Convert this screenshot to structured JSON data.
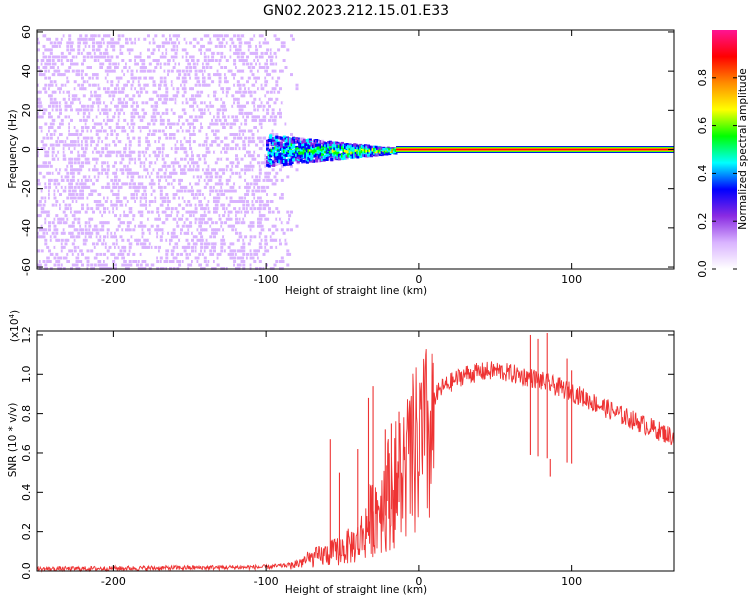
{
  "title": "GN02.2023.212.15.01.E33",
  "chart_data": [
    {
      "type": "heatmap",
      "name": "spectrogram",
      "xlabel": "Height of straight line (km)",
      "ylabel": "Frequency (Hz)",
      "xlim": [
        -250,
        167
      ],
      "ylim": [
        -61,
        61
      ],
      "xticks": [
        -200,
        -100,
        0,
        100
      ],
      "yticks": [
        -60,
        -40,
        -20,
        0,
        20,
        40,
        60
      ],
      "colorbar": {
        "label": "Normalized spectral amplitude",
        "range": [
          0,
          1
        ],
        "ticks": [
          0.0,
          0.2,
          0.4,
          0.6,
          0.8
        ],
        "colors": [
          "#ffffff",
          "#d9b3ff",
          "#8a2be2",
          "#0000ff",
          "#00ffff",
          "#00ff00",
          "#ffff00",
          "#ff8c00",
          "#ff0000",
          "#ff1493"
        ]
      },
      "regions": [
        {
          "name": "noise",
          "x_range": [
            -250,
            -100
          ],
          "freq_range": [
            -60,
            60
          ],
          "amplitude_range": [
            0.02,
            0.2
          ]
        },
        {
          "name": "signal-spread",
          "x_range": [
            -100,
            -15
          ],
          "freq_center": 0,
          "freq_halfwidth_start": 8,
          "freq_halfwidth_end": 1,
          "amplitude_range": [
            0.15,
            0.9
          ]
        },
        {
          "name": "steady-line",
          "x_range": [
            -15,
            167
          ],
          "freq_center": 0,
          "amplitude": 0.95
        }
      ]
    },
    {
      "type": "line",
      "name": "snr",
      "xlabel": "Height of straight line (km)",
      "ylabel": "SNR (10 * v/v)",
      "yscale_label": "(x10^4)",
      "scale_base": "(x10",
      "scale_exp": "4",
      "scale_close": ")",
      "xlim": [
        -250,
        167
      ],
      "ylim": [
        0,
        1.22
      ],
      "xticks": [
        -200,
        -100,
        0,
        100
      ],
      "yticks": [
        0.0,
        0.2,
        0.4,
        0.6,
        0.8,
        1.0,
        1.2
      ],
      "color": "#ee3333",
      "envelope": [
        {
          "x": -250,
          "y": 0.01
        },
        {
          "x": -100,
          "y": 0.02
        },
        {
          "x": -85,
          "y": 0.03
        },
        {
          "x": -70,
          "y": 0.08
        },
        {
          "x": -55,
          "y": 0.12
        },
        {
          "x": -40,
          "y": 0.18
        },
        {
          "x": -30,
          "y": 0.35
        },
        {
          "x": -20,
          "y": 0.5
        },
        {
          "x": -10,
          "y": 0.62
        },
        {
          "x": 0,
          "y": 0.78
        },
        {
          "x": 15,
          "y": 0.93
        },
        {
          "x": 30,
          "y": 1.0
        },
        {
          "x": 50,
          "y": 1.02
        },
        {
          "x": 75,
          "y": 0.98
        },
        {
          "x": 100,
          "y": 0.91
        },
        {
          "x": 130,
          "y": 0.8
        },
        {
          "x": 167,
          "y": 0.68
        }
      ],
      "spikes": [
        {
          "x": -58,
          "y": 0.67
        },
        {
          "x": -52,
          "y": 0.5
        },
        {
          "x": -40,
          "y": 0.62
        },
        {
          "x": -33,
          "y": 0.88
        },
        {
          "x": -30,
          "y": 0.94
        },
        {
          "x": -22,
          "y": 0.72
        },
        {
          "x": -18,
          "y": 0.75
        },
        {
          "x": -13,
          "y": 0.81
        },
        {
          "x": 73,
          "y": 1.2
        },
        {
          "x": 78,
          "y": 1.18
        },
        {
          "x": 84,
          "y": 1.21
        },
        {
          "x": 86,
          "y": 0.48
        },
        {
          "x": 97,
          "y": 1.08
        },
        {
          "x": 100,
          "y": 1.02
        }
      ]
    }
  ]
}
